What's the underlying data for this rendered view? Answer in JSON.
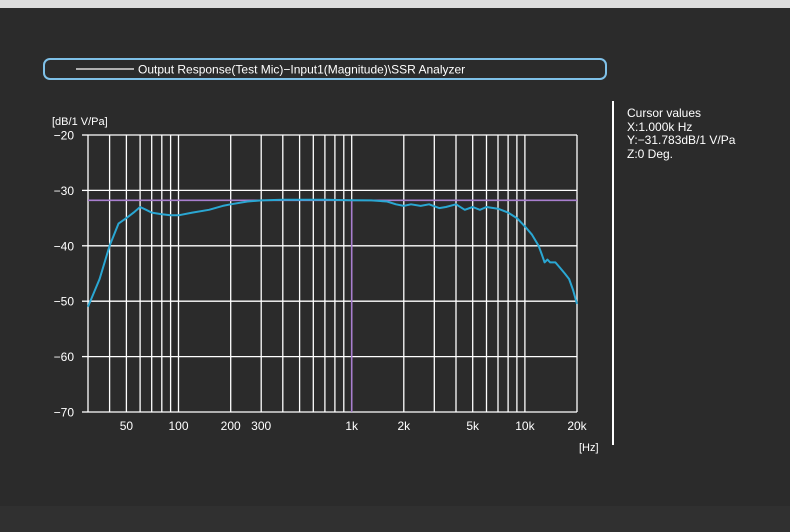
{
  "colors": {
    "background": "#2b2b2b",
    "grid": "#ffffff",
    "trace": "#2aa7d3",
    "cursor": "#a97fcf",
    "legend_border": "#7fc1e8"
  },
  "legend": {
    "label": "Output Response(Test Mic)−Input1(Magnitude)\\SSR Analyzer"
  },
  "cursor_panel": {
    "title": "Cursor values",
    "x": "X:1.000k Hz",
    "y": "Y:−31.783dB/1 V/Pa",
    "z": "Z:0 Deg."
  },
  "chart_data": {
    "type": "line",
    "title": "",
    "xlabel": "[Hz]",
    "ylabel": "[dB/1 V/Pa]",
    "x_scale": "log",
    "xlim": [
      30,
      20000
    ],
    "ylim": [
      -70,
      -20
    ],
    "grid": true,
    "legend_position": "top",
    "x_ticks": [
      {
        "value": 50,
        "label": "50"
      },
      {
        "value": 100,
        "label": "100"
      },
      {
        "value": 200,
        "label": "200"
      },
      {
        "value": 300,
        "label": "300"
      },
      {
        "value": 1000,
        "label": "1k"
      },
      {
        "value": 2000,
        "label": "2k"
      },
      {
        "value": 5000,
        "label": "5k"
      },
      {
        "value": 10000,
        "label": "10k"
      },
      {
        "value": 20000,
        "label": "20k"
      }
    ],
    "x_gridlines": [
      30,
      40,
      50,
      60,
      70,
      80,
      90,
      100,
      200,
      300,
      400,
      500,
      600,
      700,
      800,
      900,
      1000,
      2000,
      3000,
      4000,
      5000,
      6000,
      7000,
      8000,
      9000,
      10000,
      20000
    ],
    "y_ticks": [
      {
        "value": -20,
        "label": "−20"
      },
      {
        "value": -30,
        "label": "−30"
      },
      {
        "value": -40,
        "label": "−40"
      },
      {
        "value": -50,
        "label": "−50"
      },
      {
        "value": -60,
        "label": "−60"
      },
      {
        "value": -70,
        "label": "−70"
      }
    ],
    "cursor": {
      "x": 1000,
      "y": -31.783
    },
    "series": [
      {
        "x": [
          30,
          35,
          40,
          45,
          50,
          55,
          60,
          65,
          70,
          80,
          90,
          100,
          120,
          150,
          180,
          200,
          250,
          300,
          400,
          500,
          700,
          1000,
          1300,
          1600,
          1800,
          2000,
          2200,
          2500,
          2800,
          3200,
          3500,
          4000,
          4500,
          5000,
          5500,
          6000,
          7000,
          8000,
          9000,
          10000,
          11000,
          12000,
          12500,
          13000,
          13500,
          14000,
          15000,
          16000,
          17000,
          18000,
          19000,
          20000
        ],
        "values": [
          -51,
          -46,
          -40,
          -36,
          -35,
          -34,
          -33,
          -33.5,
          -34,
          -34.3,
          -34.5,
          -34.5,
          -34,
          -33.5,
          -32.8,
          -32.5,
          -32,
          -31.8,
          -31.7,
          -31.7,
          -31.7,
          -31.78,
          -31.8,
          -32,
          -32.5,
          -32.8,
          -32.5,
          -32.8,
          -32.5,
          -33.2,
          -33,
          -32.5,
          -33.5,
          -33,
          -33.5,
          -33,
          -33.3,
          -34,
          -35,
          -36.5,
          -38,
          -40,
          -41.5,
          -43,
          -42.5,
          -43,
          -43,
          -44,
          -45,
          -46,
          -48,
          -50.5
        ]
      }
    ]
  }
}
